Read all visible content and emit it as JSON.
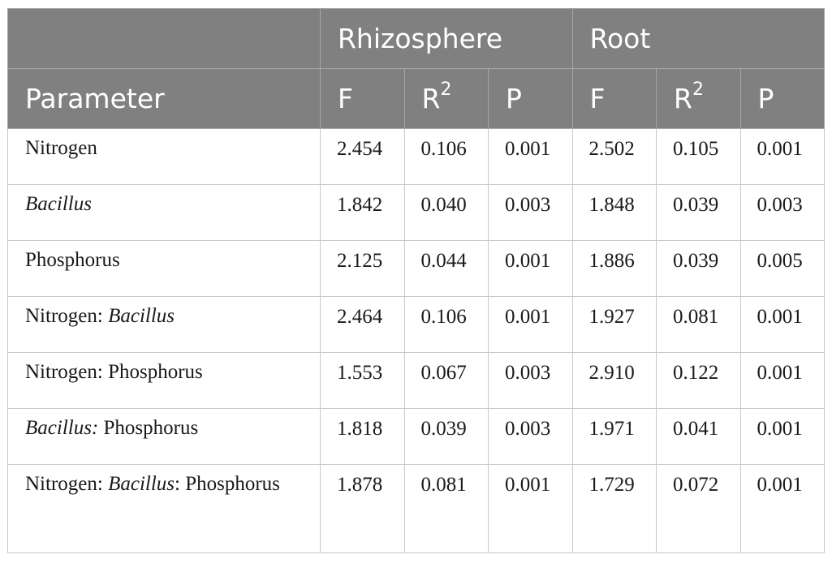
{
  "header": {
    "group_rhizosphere": "Rhizosphere",
    "group_root": "Root",
    "parameter": "Parameter",
    "f": "F",
    "r_base": "R",
    "r_sup": "2",
    "p": "P"
  },
  "rows": [
    {
      "param": [
        {
          "text": "Nitrogen",
          "italic": false
        }
      ],
      "values": [
        "2.454",
        "0.106",
        "0.001",
        "2.502",
        "0.105",
        "0.001"
      ]
    },
    {
      "param": [
        {
          "text": "Bacillus",
          "italic": true
        }
      ],
      "values": [
        "1.842",
        "0.040",
        "0.003",
        "1.848",
        "0.039",
        "0.003"
      ]
    },
    {
      "param": [
        {
          "text": "Phosphorus",
          "italic": false
        }
      ],
      "values": [
        "2.125",
        "0.044",
        "0.001",
        "1.886",
        "0.039",
        "0.005"
      ]
    },
    {
      "param": [
        {
          "text": "Nitrogen: ",
          "italic": false
        },
        {
          "text": "Bacillus",
          "italic": true
        }
      ],
      "values": [
        "2.464",
        "0.106",
        "0.001",
        "1.927",
        "0.081",
        "0.001"
      ]
    },
    {
      "param": [
        {
          "text": "Nitrogen: Phosphorus",
          "italic": false
        }
      ],
      "values": [
        "1.553",
        "0.067",
        "0.003",
        "2.910",
        "0.122",
        "0.001"
      ]
    },
    {
      "param": [
        {
          "text": "Bacillus:",
          "italic": true
        },
        {
          "text": " Phosphorus",
          "italic": false
        }
      ],
      "values": [
        "1.818",
        "0.039",
        "0.003",
        "1.971",
        "0.041",
        "0.001"
      ]
    },
    {
      "param": [
        {
          "text": "Nitrogen: ",
          "italic": false
        },
        {
          "text": "Bacillus",
          "italic": true
        },
        {
          "text": ": Phosphorus",
          "italic": false
        }
      ],
      "values": [
        "1.878",
        "0.081",
        "0.001",
        "1.729",
        "0.072",
        "0.001"
      ]
    }
  ]
}
